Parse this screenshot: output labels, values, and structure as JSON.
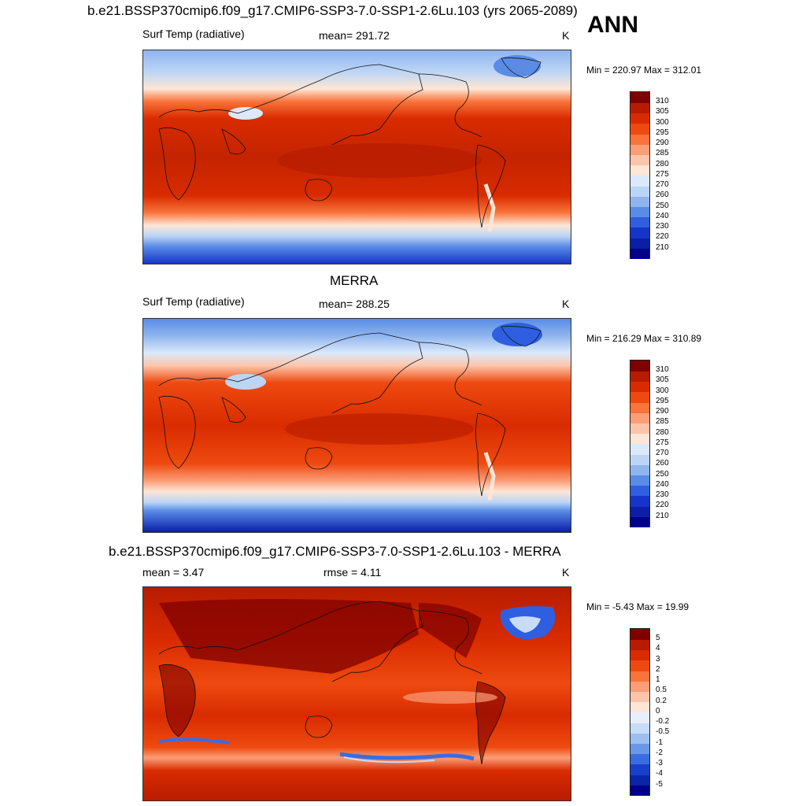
{
  "header": {
    "season": "ANN"
  },
  "panels": [
    {
      "title": "b.e21.BSSP370cmip6.f09_g17.CMIP6-SSP3-7.0-SSP1-2.6Lu.103 (yrs 2065-2089)",
      "left_label": "Surf Temp (radiative)",
      "center_label": "mean= 291.72",
      "units": "K",
      "minmax": "Min = 220.97 Max = 312.01",
      "colorbar": [
        "310",
        "305",
        "300",
        "295",
        "290",
        "285",
        "280",
        "275",
        "270",
        "260",
        "250",
        "240",
        "230",
        "220",
        "210"
      ]
    },
    {
      "title": "MERRA",
      "left_label": "Surf Temp (radiative)",
      "center_label": "mean= 288.25",
      "units": "K",
      "minmax": "Min = 216.29 Max = 310.89",
      "colorbar": [
        "310",
        "305",
        "300",
        "295",
        "290",
        "285",
        "280",
        "275",
        "270",
        "260",
        "250",
        "240",
        "230",
        "220",
        "210"
      ]
    },
    {
      "title": "b.e21.BSSP370cmip6.f09_g17.CMIP6-SSP3-7.0-SSP1-2.6Lu.103 - MERRA",
      "left_label": "mean =   3.47",
      "center_label": "rmse =   4.11",
      "units": "K",
      "minmax": "Min =  -5.43 Max =  19.99",
      "colorbar": [
        "5",
        "4",
        "3",
        "2",
        "1",
        "0.5",
        "0.2",
        "0",
        "-0.2",
        "-0.5",
        "-1",
        "-2",
        "-3",
        "-4",
        "-5"
      ]
    }
  ],
  "colors": {
    "abs_scale": [
      "#7f0000",
      "#b71c00",
      "#d92b00",
      "#ee4a10",
      "#f9733a",
      "#fb9e78",
      "#fcc5aa",
      "#fde6d6",
      "#dbe9fb",
      "#bcd5f6",
      "#8fb5ee",
      "#5a8ce6",
      "#2f5fe0",
      "#1535c8",
      "#0a1ea8",
      "#00008a"
    ],
    "anom_scale": [
      "#7f0000",
      "#b71c00",
      "#d92b00",
      "#ee4a10",
      "#f9733a",
      "#fb9e78",
      "#fcc5aa",
      "#fde6d6",
      "#e7effc",
      "#c6dcf7",
      "#9cc0f1",
      "#6a98e8",
      "#3a6ce2",
      "#1840cc",
      "#0a24aa",
      "#00008a"
    ]
  }
}
